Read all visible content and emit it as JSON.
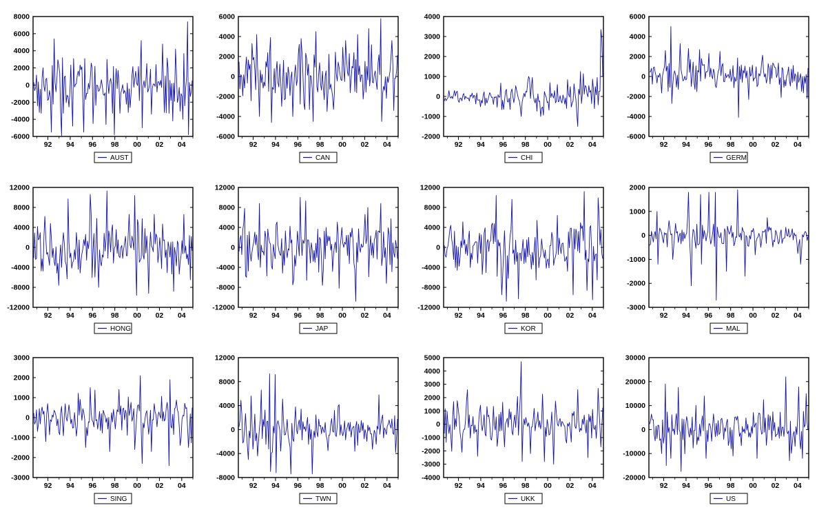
{
  "figure": {
    "background": "#ffffff",
    "line_color": "#1010b4",
    "axis_color": "#000000"
  },
  "chart_data": [
    {
      "type": "line",
      "series": [
        {
          "name": "AUST"
        }
      ],
      "ylim": [
        -6000,
        8000
      ],
      "yticks": [
        8000,
        6000,
        4000,
        2000,
        0,
        -2000,
        -4000,
        -6000
      ],
      "x_range": [
        1990.67,
        2005.0
      ],
      "xticks": [
        "92",
        "94",
        "96",
        "98",
        "00",
        "02",
        "04"
      ],
      "std": 1500,
      "spikes": [
        [
          1991.3,
          -3300
        ],
        [
          1992.3,
          -5500
        ],
        [
          1992.5,
          5400
        ],
        [
          1993.2,
          -5900
        ],
        [
          1993.3,
          3200
        ],
        [
          1994.2,
          -4800
        ],
        [
          1994.3,
          3100
        ],
        [
          1995.2,
          -5500
        ],
        [
          1995.3,
          3100
        ],
        [
          1996.0,
          -4500
        ],
        [
          1996.2,
          2200
        ],
        [
          1997.2,
          -4600
        ],
        [
          1997.3,
          3000
        ],
        [
          1998.0,
          -5800
        ],
        [
          1998.5,
          -3300
        ],
        [
          1999.2,
          -3200
        ],
        [
          2000.4,
          5200
        ],
        [
          2000.5,
          -5000
        ],
        [
          2001.3,
          -3400
        ],
        [
          2002.3,
          4800
        ],
        [
          2002.5,
          -3200
        ],
        [
          2003.2,
          -4200
        ],
        [
          2003.5,
          4200
        ],
        [
          2004.2,
          -4000
        ],
        [
          2004.6,
          7400
        ],
        [
          2004.7,
          -5800
        ]
      ]
    },
    {
      "type": "line",
      "series": [
        {
          "name": "CAN"
        }
      ],
      "ylim": [
        -6000,
        6000
      ],
      "yticks": [
        6000,
        4000,
        2000,
        0,
        -2000,
        -4000,
        -6000
      ],
      "x_range": [
        1990.67,
        2005.0
      ],
      "xticks": [
        "92",
        "94",
        "96",
        "98",
        "00",
        "02",
        "04"
      ],
      "std": 1500,
      "spikes": [
        [
          1992.3,
          4200
        ],
        [
          1992.5,
          -4000
        ],
        [
          1993.5,
          3900
        ],
        [
          1993.6,
          -4600
        ],
        [
          1995.5,
          -4000
        ],
        [
          1996.3,
          3800
        ],
        [
          1997.4,
          -4500
        ],
        [
          1997.6,
          4500
        ],
        [
          1998.6,
          -3500
        ],
        [
          2000.3,
          3600
        ],
        [
          2001.4,
          4200
        ],
        [
          2002.4,
          4800
        ],
        [
          2003.5,
          5800
        ],
        [
          2003.6,
          -4500
        ],
        [
          2004.5,
          3600
        ],
        [
          2004.7,
          -3400
        ]
      ]
    },
    {
      "type": "line",
      "series": [
        {
          "name": "CHI"
        }
      ],
      "ylim": [
        -2000,
        4000
      ],
      "yticks": [
        4000,
        3000,
        2000,
        1000,
        0,
        -1000,
        -2000
      ],
      "x_range": [
        1990.67,
        2005.0
      ],
      "xticks": [
        "92",
        "94",
        "96",
        "98",
        "00",
        "02",
        "04"
      ],
      "std": 200,
      "grow": 2.8,
      "spikes": [
        [
          1997.6,
          -1000
        ],
        [
          1998.6,
          950
        ],
        [
          1999.4,
          -1000
        ],
        [
          2002.7,
          -1500
        ],
        [
          2003.0,
          1250
        ],
        [
          2004.8,
          3350
        ],
        [
          2004.9,
          2900
        ]
      ]
    },
    {
      "type": "line",
      "series": [
        {
          "name": "GERM"
        }
      ],
      "ylim": [
        -6000,
        6000
      ],
      "yticks": [
        6000,
        4000,
        2000,
        0,
        -2000,
        -4000,
        -6000
      ],
      "x_range": [
        1990.67,
        2005.0
      ],
      "xticks": [
        "92",
        "94",
        "96",
        "98",
        "00",
        "02",
        "04"
      ],
      "std": 900,
      "spikes": [
        [
          1992.1,
          2600
        ],
        [
          1992.6,
          5000
        ],
        [
          1992.7,
          -2700
        ],
        [
          1993.4,
          3300
        ],
        [
          1994.2,
          2800
        ],
        [
          1995.2,
          2700
        ],
        [
          1998.7,
          -4100
        ],
        [
          1999.6,
          -2300
        ],
        [
          2004.9,
          -2200
        ]
      ]
    },
    {
      "type": "line",
      "series": [
        {
          "name": "HONG"
        }
      ],
      "ylim": [
        -12000,
        12000
      ],
      "yticks": [
        12000,
        8000,
        4000,
        0,
        -4000,
        -8000,
        -12000
      ],
      "x_range": [
        1990.67,
        2005.0
      ],
      "xticks": [
        "92",
        "94",
        "96",
        "98",
        "00",
        "02",
        "04"
      ],
      "std": 2800,
      "spikes": [
        [
          1991.7,
          6200
        ],
        [
          1992.9,
          -7600
        ],
        [
          1993.8,
          9700
        ],
        [
          1995.8,
          10600
        ],
        [
          1996.5,
          -8000
        ],
        [
          1997.3,
          11300
        ],
        [
          1999.8,
          10400
        ],
        [
          2000.0,
          -9600
        ],
        [
          2001.1,
          -9200
        ],
        [
          2003.3,
          -8800
        ],
        [
          2004.8,
          -6500
        ]
      ]
    },
    {
      "type": "line",
      "series": [
        {
          "name": "JAP"
        }
      ],
      "ylim": [
        -12000,
        12000
      ],
      "yticks": [
        12000,
        8000,
        4000,
        0,
        -4000,
        -8000,
        -12000
      ],
      "x_range": [
        1990.67,
        2005.0
      ],
      "xticks": [
        "92",
        "94",
        "96",
        "98",
        "00",
        "02",
        "04"
      ],
      "std": 3000,
      "spikes": [
        [
          1991.2,
          7800
        ],
        [
          1991.3,
          -6000
        ],
        [
          1992.5,
          8800
        ],
        [
          1995.5,
          -7500
        ],
        [
          1996.2,
          10000
        ],
        [
          1996.7,
          9300
        ],
        [
          1998.2,
          -7600
        ],
        [
          1999.7,
          -8200
        ],
        [
          2001.2,
          -10800
        ],
        [
          2002.3,
          8000
        ],
        [
          2003.5,
          8800
        ],
        [
          2004.0,
          -7200
        ]
      ]
    },
    {
      "type": "line",
      "series": [
        {
          "name": "KOR"
        }
      ],
      "ylim": [
        -12000,
        12000
      ],
      "yticks": [
        12000,
        8000,
        4000,
        0,
        -4000,
        -8000,
        -12000
      ],
      "x_range": [
        1990.67,
        2005.0
      ],
      "xticks": [
        "92",
        "94",
        "96",
        "98",
        "00",
        "02",
        "04"
      ],
      "std": 2800,
      "spikes": [
        [
          1995.4,
          10400
        ],
        [
          1995.9,
          -9500
        ],
        [
          1996.3,
          -10800
        ],
        [
          1996.8,
          9600
        ],
        [
          1997.4,
          -10300
        ],
        [
          2002.3,
          -9500
        ],
        [
          2003.3,
          11200
        ],
        [
          2003.6,
          -8600
        ],
        [
          2004.1,
          -10500
        ],
        [
          2004.6,
          9900
        ]
      ]
    },
    {
      "type": "line",
      "series": [
        {
          "name": "MAL"
        }
      ],
      "ylim": [
        -3000,
        2000
      ],
      "yticks": [
        2000,
        1000,
        0,
        -1000,
        -2000,
        -3000
      ],
      "x_range": [
        1990.67,
        2005.0
      ],
      "xticks": [
        "92",
        "94",
        "96",
        "98",
        "00",
        "02",
        "04"
      ],
      "std": 300,
      "spikes": [
        [
          1991.3,
          1000
        ],
        [
          1991.4,
          -1200
        ],
        [
          1992.8,
          -1000
        ],
        [
          1994.2,
          1800
        ],
        [
          1994.4,
          -2100
        ],
        [
          1995.3,
          1700
        ],
        [
          1995.4,
          -1200
        ],
        [
          1996.0,
          1800
        ],
        [
          1996.6,
          1800
        ],
        [
          1996.7,
          -2700
        ],
        [
          1997.6,
          -1500
        ],
        [
          1998.6,
          1900
        ],
        [
          1999.3,
          -1700
        ],
        [
          2004.3,
          -1200
        ]
      ]
    },
    {
      "type": "line",
      "series": [
        {
          "name": "SING"
        }
      ],
      "ylim": [
        -3000,
        3000
      ],
      "yticks": [
        3000,
        2000,
        1000,
        0,
        -1000,
        -2000,
        -3000
      ],
      "x_range": [
        1990.67,
        2005.0
      ],
      "xticks": [
        "92",
        "94",
        "96",
        "98",
        "00",
        "02",
        "04"
      ],
      "std": 500,
      "spikes": [
        [
          1991.8,
          -1200
        ],
        [
          1995.4,
          -1500
        ],
        [
          1995.8,
          1500
        ],
        [
          1997.5,
          -1700
        ],
        [
          1999.8,
          -1600
        ],
        [
          2000.3,
          2100
        ],
        [
          2000.5,
          -2300
        ],
        [
          2001.3,
          -1700
        ],
        [
          2002.9,
          -2400
        ],
        [
          2003.0,
          1900
        ],
        [
          2004.7,
          -1500
        ]
      ]
    },
    {
      "type": "line",
      "series": [
        {
          "name": "TWN"
        }
      ],
      "ylim": [
        -8000,
        12000
      ],
      "yticks": [
        12000,
        8000,
        4000,
        0,
        -4000,
        -8000
      ],
      "x_range": [
        1990.67,
        2005.0
      ],
      "xticks": [
        "92",
        "94",
        "96",
        "98",
        "00",
        "02",
        "04"
      ],
      "std": 1400,
      "shrink": true,
      "spikes": [
        [
          1991.5,
          -5000
        ],
        [
          1991.8,
          5600
        ],
        [
          1993.4,
          9300
        ],
        [
          1993.5,
          -7000
        ],
        [
          1993.9,
          9200
        ],
        [
          1994.0,
          -7200
        ],
        [
          1994.6,
          5100
        ],
        [
          1995.4,
          -7400
        ],
        [
          1997.3,
          -7400
        ],
        [
          2003.3,
          5800
        ],
        [
          2004.8,
          -3800
        ]
      ]
    },
    {
      "type": "line",
      "series": [
        {
          "name": "UKK"
        }
      ],
      "ylim": [
        -4000,
        5000
      ],
      "yticks": [
        5000,
        4000,
        3000,
        2000,
        1000,
        0,
        -1000,
        -2000,
        -3000,
        -4000
      ],
      "x_range": [
        1990.67,
        2005.0
      ],
      "xticks": [
        "92",
        "94",
        "96",
        "98",
        "00",
        "02",
        "04"
      ],
      "std": 800,
      "spikes": [
        [
          1991.5,
          1700
        ],
        [
          1992.3,
          -2100
        ],
        [
          1992.8,
          2600
        ],
        [
          1993.7,
          -2400
        ],
        [
          1997.6,
          4700
        ],
        [
          1997.7,
          -2800
        ],
        [
          1998.5,
          -2200
        ],
        [
          1999.7,
          -2800
        ],
        [
          2000.6,
          -3000
        ],
        [
          2002.7,
          2600
        ],
        [
          2003.7,
          -2500
        ],
        [
          2004.6,
          2700
        ],
        [
          2004.8,
          -1700
        ]
      ]
    },
    {
      "type": "line",
      "series": [
        {
          "name": "US"
        }
      ],
      "ylim": [
        -20000,
        30000
      ],
      "yticks": [
        30000,
        20000,
        10000,
        0,
        -10000,
        -20000
      ],
      "x_range": [
        1990.67,
        2005.0
      ],
      "xticks": [
        "92",
        "94",
        "96",
        "98",
        "00",
        "02",
        "04"
      ],
      "std": 4500,
      "spikes": [
        [
          1991.8,
          -10000
        ],
        [
          1992.1,
          19000
        ],
        [
          1992.2,
          -15000
        ],
        [
          1992.6,
          -12000
        ],
        [
          1993.3,
          17600
        ],
        [
          1993.5,
          -17500
        ],
        [
          1995.6,
          14000
        ],
        [
          1995.8,
          -12000
        ],
        [
          2000.4,
          -12000
        ],
        [
          2003.0,
          22000
        ],
        [
          2003.3,
          -13000
        ],
        [
          2004.2,
          17800
        ],
        [
          2004.5,
          -12000
        ],
        [
          2004.8,
          15000
        ]
      ]
    }
  ]
}
